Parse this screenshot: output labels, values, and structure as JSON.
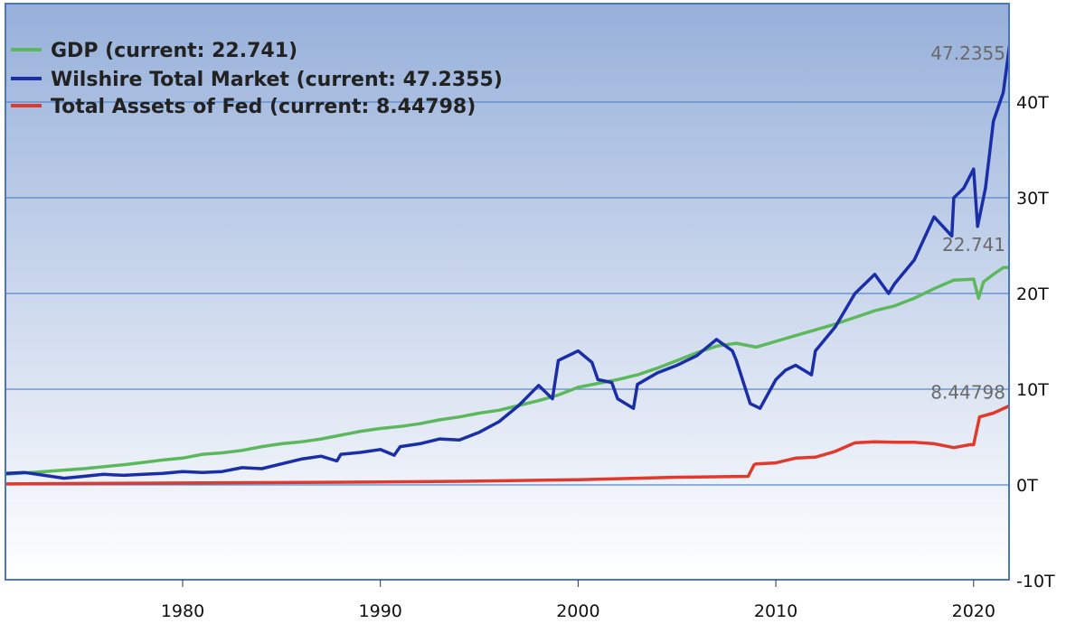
{
  "chart_data": {
    "type": "line",
    "title": "",
    "xlabel": "",
    "ylabel": "",
    "xlim": [
      1971,
      2022
    ],
    "ylim": [
      -10,
      50
    ],
    "x_ticks": [
      1980,
      1990,
      2000,
      2010,
      2020
    ],
    "y_ticks": [
      -10,
      0,
      10,
      20,
      30,
      40
    ],
    "y_tick_labels": [
      "-10T",
      "0T",
      "10T",
      "20T",
      "30T",
      "40T"
    ],
    "grid": "horizontal",
    "legend_position": "top-left",
    "colors": {
      "background_top": "#9bb4dc",
      "background_bottom": "#ffffff",
      "grid": "#5b86c8",
      "border": "#4a78c0"
    },
    "series": [
      {
        "name": "GDP",
        "legend": "GDP (current: 22.741)",
        "end_label": "22.741",
        "color": "#5cb85c",
        "x": [
          1971,
          1972,
          1973,
          1974,
          1975,
          1976,
          1977,
          1978,
          1979,
          1980,
          1981,
          1982,
          1983,
          1984,
          1985,
          1986,
          1987,
          1988,
          1989,
          1990,
          1991,
          1992,
          1993,
          1994,
          1995,
          1996,
          1997,
          1998,
          1999,
          2000,
          2001,
          2002,
          2003,
          2004,
          2005,
          2006,
          2007,
          2008,
          2009,
          2010,
          2011,
          2012,
          2013,
          2014,
          2015,
          2016,
          2017,
          2018,
          2019,
          2020,
          2020.25,
          2020.5,
          2020.75,
          2021,
          2021.5,
          2022
        ],
        "y": [
          1.1,
          1.25,
          1.4,
          1.55,
          1.7,
          1.9,
          2.1,
          2.35,
          2.6,
          2.8,
          3.2,
          3.35,
          3.6,
          4.0,
          4.3,
          4.5,
          4.8,
          5.2,
          5.6,
          5.9,
          6.1,
          6.4,
          6.8,
          7.1,
          7.5,
          7.8,
          8.3,
          8.8,
          9.4,
          10.2,
          10.6,
          11.0,
          11.5,
          12.2,
          13.0,
          13.8,
          14.5,
          14.8,
          14.4,
          15.0,
          15.6,
          16.2,
          16.8,
          17.5,
          18.2,
          18.7,
          19.5,
          20.5,
          21.4,
          21.5,
          19.5,
          21.2,
          21.6,
          22.0,
          22.7,
          22.741
        ]
      },
      {
        "name": "Wilshire Total Market",
        "legend": "Wilshire Total Market (current: 47.2355)",
        "end_label": "47.2355",
        "color": "#1a2ea8",
        "x": [
          1971,
          1972,
          1973,
          1974,
          1975,
          1976,
          1977,
          1978,
          1979,
          1980,
          1981,
          1982,
          1983,
          1984,
          1985,
          1986,
          1987,
          1987.8,
          1988,
          1989,
          1990,
          1990.7,
          1991,
          1992,
          1993,
          1994,
          1995,
          1996,
          1997,
          1998,
          1998.7,
          1999,
          2000,
          2000.7,
          2001,
          2001.7,
          2002,
          2002.8,
          2003,
          2004,
          2005,
          2006,
          2007,
          2007.8,
          2008,
          2008.7,
          2009.2,
          2010,
          2010.5,
          2011,
          2011.8,
          2012,
          2013,
          2014,
          2015,
          2015.7,
          2016,
          2017,
          2018,
          2018.9,
          2019,
          2019.5,
          2020,
          2020.2,
          2020.6,
          2021,
          2021.5,
          2021.9,
          2022
        ],
        "y": [
          1.2,
          1.3,
          1.0,
          0.7,
          0.9,
          1.1,
          1.0,
          1.1,
          1.2,
          1.4,
          1.3,
          1.4,
          1.8,
          1.7,
          2.2,
          2.7,
          3.0,
          2.5,
          3.2,
          3.4,
          3.7,
          3.1,
          4.0,
          4.3,
          4.8,
          4.7,
          5.5,
          6.6,
          8.3,
          10.4,
          9.0,
          13.0,
          14.0,
          12.8,
          11.0,
          10.7,
          9.0,
          8.0,
          10.5,
          11.7,
          12.5,
          13.5,
          15.2,
          14.0,
          13.0,
          8.5,
          8.0,
          11.0,
          12.0,
          12.5,
          11.5,
          14.0,
          16.5,
          20.0,
          22.0,
          20.0,
          21.0,
          23.5,
          28.0,
          26.0,
          30.0,
          31.0,
          33.0,
          27.0,
          31.0,
          38.0,
          41.0,
          47.2,
          47.2355
        ]
      },
      {
        "name": "Total Assets of Fed",
        "legend": "Total Assets of Fed (current: 8.44798)",
        "end_label": "8.44798",
        "color": "#e03a2e",
        "x": [
          1971,
          1975,
          1980,
          1985,
          1990,
          1995,
          2000,
          2005,
          2008.6,
          2008.9,
          2009,
          2010,
          2011,
          2012,
          2013,
          2014,
          2015,
          2016,
          2017,
          2018,
          2019,
          2019.8,
          2020,
          2020.3,
          2021,
          2022
        ],
        "y": [
          0.1,
          0.15,
          0.2,
          0.25,
          0.3,
          0.4,
          0.55,
          0.8,
          0.9,
          2.1,
          2.2,
          2.3,
          2.8,
          2.9,
          3.5,
          4.4,
          4.5,
          4.45,
          4.45,
          4.3,
          3.9,
          4.2,
          4.2,
          7.1,
          7.5,
          8.44798
        ]
      }
    ]
  }
}
